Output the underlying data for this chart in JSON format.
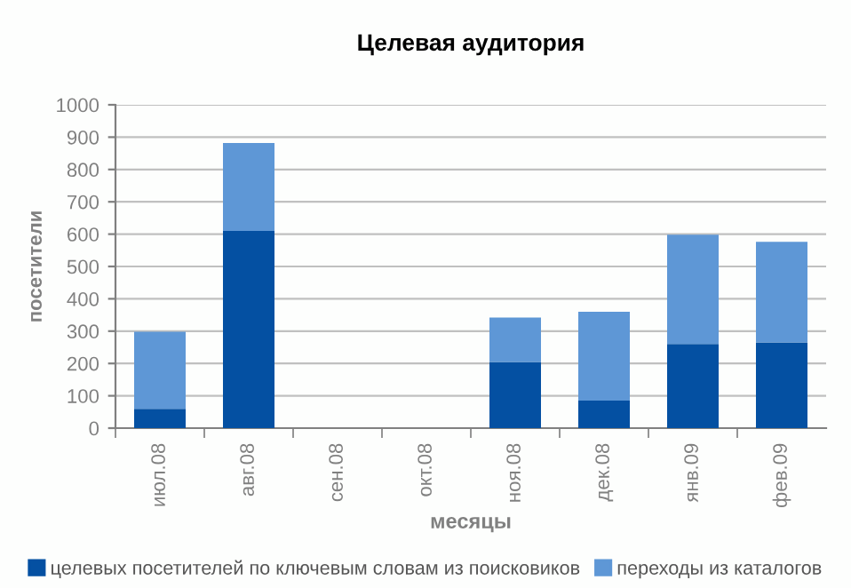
{
  "chart_data": {
    "type": "bar",
    "title": "Целевая аудитория",
    "xlabel": "месяцы",
    "ylabel": "посетители",
    "categories": [
      "июл.08",
      "авг.08",
      "сен.08",
      "окт.08",
      "ноя.08",
      "дек.08",
      "янв.09",
      "фев.09"
    ],
    "stacked": true,
    "series": [
      {
        "name": "целевых посетителей по ключевым словам из поисковиков",
        "color": "#0450a2",
        "values": [
          60,
          610,
          0,
          0,
          205,
          85,
          260,
          265
        ]
      },
      {
        "name": "переходы из каталогов",
        "color": "#5e97d6",
        "values": [
          238,
          272,
          0,
          0,
          137,
          275,
          338,
          311
        ]
      }
    ],
    "ylim": [
      0,
      1000
    ],
    "yticks": [
      0,
      100,
      200,
      300,
      400,
      500,
      600,
      700,
      800,
      900,
      1000
    ],
    "grid": "y",
    "legend": "bottom"
  }
}
